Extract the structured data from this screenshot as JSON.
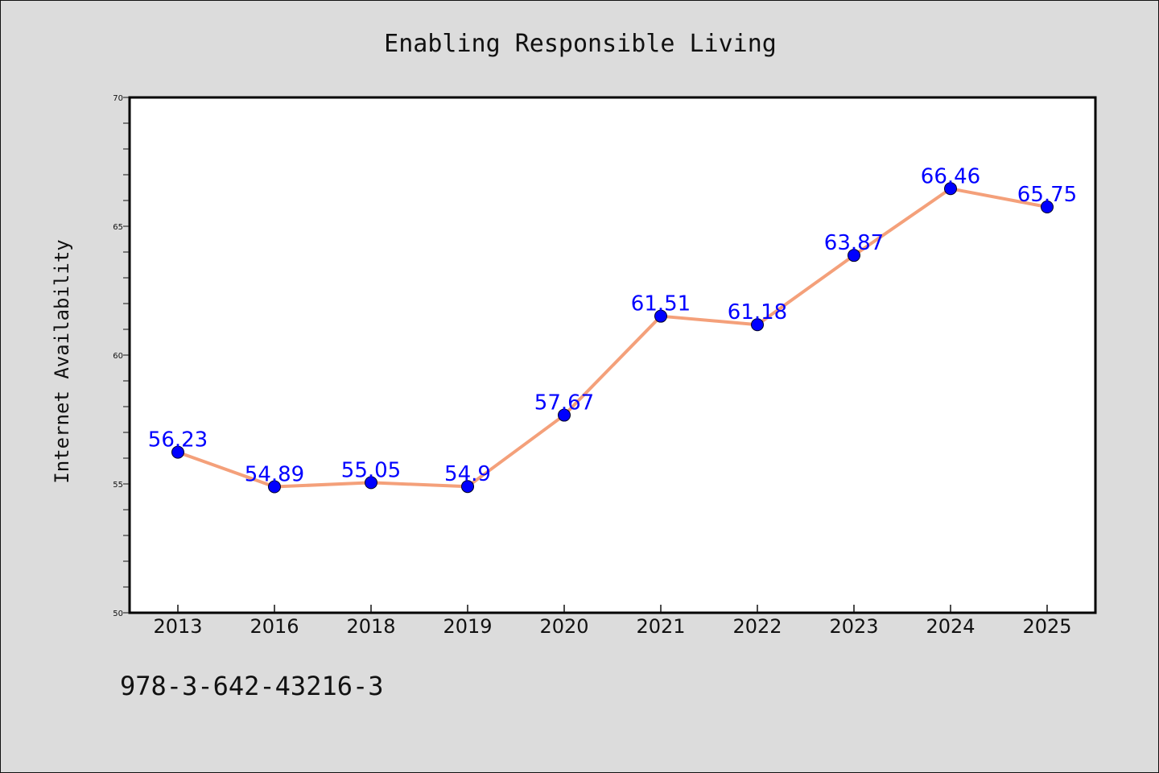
{
  "chart_data": {
    "type": "line",
    "title": "Enabling Responsible Living",
    "xlabel": "",
    "ylabel": "Internet Availability",
    "categories": [
      "2013",
      "2016",
      "2018",
      "2019",
      "2020",
      "2021",
      "2022",
      "2023",
      "2024",
      "2025"
    ],
    "series": [
      {
        "values": [
          56.23,
          54.89,
          55.05,
          54.9,
          57.67,
          61.51,
          61.18,
          63.87,
          66.46,
          65.75
        ],
        "labels": [
          "56.23",
          "54.89",
          "55.05",
          "54.9",
          "57.67",
          "61.51",
          "61.18",
          "63.87",
          "66.46",
          "65.75"
        ]
      }
    ],
    "ylim": [
      50,
      70
    ],
    "yticks": [
      "50",
      "55",
      "60",
      "65",
      "70"
    ],
    "grid": false,
    "line_color": "#f4a07a",
    "marker_color": "#0000ff",
    "label_color": "#0000ff"
  },
  "footer": {
    "isbn": "978-3-642-43216-3"
  }
}
